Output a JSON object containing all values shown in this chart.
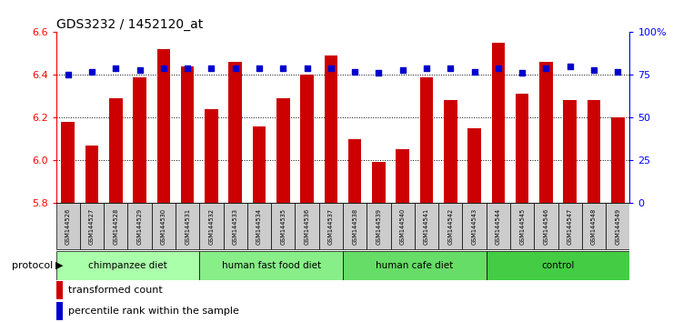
{
  "title": "GDS3232 / 1452120_at",
  "samples": [
    "GSM144526",
    "GSM144527",
    "GSM144528",
    "GSM144529",
    "GSM144530",
    "GSM144531",
    "GSM144532",
    "GSM144533",
    "GSM144534",
    "GSM144535",
    "GSM144536",
    "GSM144537",
    "GSM144538",
    "GSM144539",
    "GSM144540",
    "GSM144541",
    "GSM144542",
    "GSM144543",
    "GSM144544",
    "GSM144545",
    "GSM144546",
    "GSM144547",
    "GSM144548",
    "GSM144549"
  ],
  "bar_values": [
    6.18,
    6.07,
    6.29,
    6.39,
    6.52,
    6.44,
    6.24,
    6.46,
    6.16,
    6.29,
    6.4,
    6.49,
    6.1,
    5.99,
    6.05,
    6.39,
    6.28,
    6.15,
    6.55,
    6.31,
    6.46,
    6.28,
    6.28,
    6.2
  ],
  "percentile_values": [
    75,
    77,
    79,
    78,
    79,
    79,
    79,
    79,
    79,
    79,
    79,
    79,
    77,
    76,
    78,
    79,
    79,
    77,
    79,
    76,
    79,
    80,
    78,
    77
  ],
  "groups": [
    {
      "label": "chimpanzee diet",
      "start": 0,
      "end": 6,
      "color": "#aaffaa"
    },
    {
      "label": "human fast food diet",
      "start": 6,
      "end": 12,
      "color": "#88ee88"
    },
    {
      "label": "human cafe diet",
      "start": 12,
      "end": 18,
      "color": "#66dd66"
    },
    {
      "label": "control",
      "start": 18,
      "end": 24,
      "color": "#44cc44"
    }
  ],
  "ylim_left": [
    5.8,
    6.6
  ],
  "ylim_right": [
    0,
    100
  ],
  "yticks_left": [
    5.8,
    6.0,
    6.2,
    6.4,
    6.6
  ],
  "yticks_right": [
    0,
    25,
    50,
    75,
    100
  ],
  "bar_color": "#cc0000",
  "dot_color": "#0000cc",
  "bar_bottom": 5.8,
  "legend_bar_label": "transformed count",
  "legend_dot_label": "percentile rank within the sample",
  "protocol_label": "protocol",
  "title_fontsize": 10
}
